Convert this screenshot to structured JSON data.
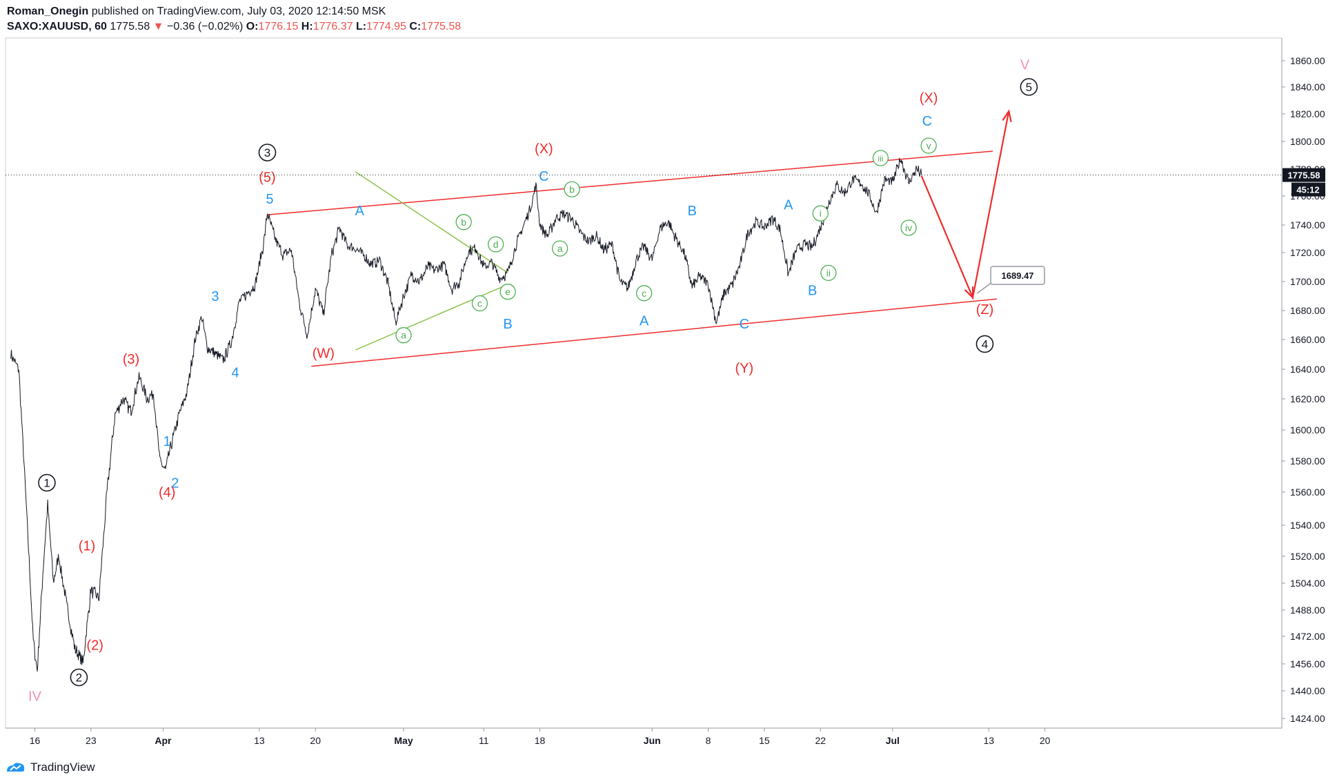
{
  "header": {
    "author": "Roman_Onegin",
    "published_text": "published on TradingView.com, July 03, 2020 12:14:50 MSK",
    "symbol": "SAXO:XAUUSD, 60",
    "last": "1775.58",
    "change": "−0.36 (−0.02%)",
    "o_label": "O:",
    "o_value": "1776.15",
    "h_label": "H:",
    "h_value": "1776.37",
    "l_label": "L:",
    "l_value": "1774.95",
    "c_label": "C:",
    "c_value": "1775.58"
  },
  "footer": {
    "brand": "TradingView"
  },
  "colors": {
    "red": "#ef2b2b",
    "blue": "#2196f3",
    "green": "#4caf50",
    "pink": "#f48fb1",
    "black": "#131722",
    "lightgreen": "#8bc34a"
  },
  "chart_data": {
    "type": "line",
    "title": "",
    "x_ticks": [
      {
        "label": "16",
        "day": 16
      },
      {
        "label": "23",
        "day": 23
      },
      {
        "label": "Apr",
        "day": 32
      },
      {
        "label": "13",
        "day": 44
      },
      {
        "label": "20",
        "day": 51
      },
      {
        "label": "May",
        "day": 62
      },
      {
        "label": "11",
        "day": 72
      },
      {
        "label": "18",
        "day": 79
      },
      {
        "label": "Jun",
        "day": 93
      },
      {
        "label": "8",
        "day": 100
      },
      {
        "label": "15",
        "day": 107
      },
      {
        "label": "22",
        "day": 114
      },
      {
        "label": "Jul",
        "day": 123
      },
      {
        "label": "13",
        "day": 135
      },
      {
        "label": "20",
        "day": 142
      }
    ],
    "y_ticks": [
      "1860.00",
      "1840.00",
      "1820.00",
      "1800.00",
      "1780.00",
      "1760.00",
      "1740.00",
      "1720.00",
      "1700.00",
      "1680.00",
      "1660.00",
      "1640.00",
      "1620.00",
      "1600.00",
      "1580.00",
      "1560.00",
      "1540.00",
      "1520.00",
      "1504.00",
      "1488.00",
      "1472.00",
      "1456.00",
      "1440.00",
      "1424.00"
    ],
    "price_path": [
      [
        13,
        1650
      ],
      [
        14,
        1640
      ],
      [
        15,
        1545
      ],
      [
        15.8,
        1470
      ],
      [
        16.3,
        1452
      ],
      [
        17,
        1510
      ],
      [
        17.6,
        1553
      ],
      [
        18.3,
        1505
      ],
      [
        19,
        1520
      ],
      [
        20,
        1490
      ],
      [
        21,
        1465
      ],
      [
        22,
        1456
      ],
      [
        23,
        1500
      ],
      [
        24,
        1495
      ],
      [
        25,
        1560
      ],
      [
        26,
        1610
      ],
      [
        27,
        1620
      ],
      [
        28,
        1612
      ],
      [
        29,
        1635
      ],
      [
        30,
        1620
      ],
      [
        30.8,
        1624
      ],
      [
        31.6,
        1580
      ],
      [
        32.3,
        1574
      ],
      [
        33,
        1590
      ],
      [
        34,
        1610
      ],
      [
        35,
        1625
      ],
      [
        36,
        1660
      ],
      [
        36.8,
        1676
      ],
      [
        37.5,
        1655
      ],
      [
        38.5,
        1650
      ],
      [
        39.5,
        1646
      ],
      [
        40.5,
        1658
      ],
      [
        41.5,
        1686
      ],
      [
        42.5,
        1692
      ],
      [
        43.5,
        1698
      ],
      [
        44.5,
        1725
      ],
      [
        45,
        1748
      ],
      [
        46,
        1730
      ],
      [
        47,
        1718
      ],
      [
        48,
        1722
      ],
      [
        49,
        1685
      ],
      [
        50,
        1663
      ],
      [
        51,
        1695
      ],
      [
        52,
        1678
      ],
      [
        53,
        1718
      ],
      [
        54,
        1738
      ],
      [
        55,
        1725
      ],
      [
        56,
        1723
      ],
      [
        57,
        1718
      ],
      [
        58,
        1712
      ],
      [
        59,
        1715
      ],
      [
        60,
        1700
      ],
      [
        61,
        1672
      ],
      [
        62,
        1690
      ],
      [
        63,
        1705
      ],
      [
        64,
        1700
      ],
      [
        65,
        1710
      ],
      [
        66,
        1708
      ],
      [
        67,
        1712
      ],
      [
        68,
        1695
      ],
      [
        69,
        1700
      ],
      [
        70,
        1720
      ],
      [
        71,
        1724
      ],
      [
        72,
        1710
      ],
      [
        73,
        1713
      ],
      [
        74,
        1702
      ],
      [
        75,
        1706
      ],
      [
        76,
        1725
      ],
      [
        77,
        1740
      ],
      [
        78,
        1755
      ],
      [
        78.5,
        1768
      ],
      [
        79,
        1740
      ],
      [
        80,
        1732
      ],
      [
        81,
        1745
      ],
      [
        82,
        1748
      ],
      [
        83,
        1744
      ],
      [
        84,
        1735
      ],
      [
        85,
        1728
      ],
      [
        86,
        1732
      ],
      [
        87,
        1722
      ],
      [
        88,
        1726
      ],
      [
        89,
        1700
      ],
      [
        90,
        1695
      ],
      [
        91,
        1715
      ],
      [
        92,
        1725
      ],
      [
        93,
        1715
      ],
      [
        94,
        1738
      ],
      [
        95,
        1742
      ],
      [
        96,
        1730
      ],
      [
        97,
        1720
      ],
      [
        98,
        1696
      ],
      [
        99,
        1704
      ],
      [
        100,
        1698
      ],
      [
        101,
        1672
      ],
      [
        102,
        1692
      ],
      [
        103,
        1698
      ],
      [
        104,
        1712
      ],
      [
        105,
        1735
      ],
      [
        106,
        1742
      ],
      [
        107,
        1738
      ],
      [
        108,
        1745
      ],
      [
        109,
        1736
      ],
      [
        110,
        1705
      ],
      [
        111,
        1722
      ],
      [
        112,
        1726
      ],
      [
        113,
        1724
      ],
      [
        114,
        1738
      ],
      [
        115,
        1755
      ],
      [
        116,
        1768
      ],
      [
        117,
        1762
      ],
      [
        118,
        1772
      ],
      [
        119,
        1770
      ],
      [
        120,
        1762
      ],
      [
        121,
        1748
      ],
      [
        122,
        1772
      ],
      [
        123,
        1770
      ],
      [
        124,
        1788
      ],
      [
        125,
        1770
      ],
      [
        126,
        1780
      ],
      [
        126.6,
        1775.58
      ]
    ],
    "last_price": "1775.58",
    "countdown": "45:12",
    "target_label": "1689.47",
    "projection": [
      [
        126.6,
        1775
      ],
      [
        133,
        1689
      ],
      [
        137.5,
        1822
      ]
    ],
    "wave_labels": [
      {
        "t": "IV",
        "day": 16,
        "p": 1437,
        "c": "pink",
        "s": "plain"
      },
      {
        "t": "1",
        "day": 17.5,
        "p": 1566,
        "c": "black",
        "s": "circle"
      },
      {
        "t": "2",
        "day": 21.5,
        "p": 1448,
        "c": "black",
        "s": "circle"
      },
      {
        "t": "(1)",
        "day": 22.5,
        "p": 1527,
        "c": "red",
        "s": "plain"
      },
      {
        "t": "(2)",
        "day": 23.5,
        "p": 1467,
        "c": "red",
        "s": "plain"
      },
      {
        "t": "(3)",
        "day": 28,
        "p": 1647,
        "c": "red",
        "s": "plain"
      },
      {
        "t": "1",
        "day": 32.5,
        "p": 1593,
        "c": "blue",
        "s": "plain"
      },
      {
        "t": "2",
        "day": 33.5,
        "p": 1566,
        "c": "blue",
        "s": "plain"
      },
      {
        "t": "(4)",
        "day": 32.5,
        "p": 1560,
        "c": "red",
        "s": "plain"
      },
      {
        "t": "3",
        "day": 38.5,
        "p": 1690,
        "c": "blue",
        "s": "plain"
      },
      {
        "t": "4",
        "day": 41,
        "p": 1638,
        "c": "blue",
        "s": "plain"
      },
      {
        "t": "3",
        "day": 45,
        "p": 1792,
        "c": "black",
        "s": "circle"
      },
      {
        "t": "(5)",
        "day": 45,
        "p": 1774,
        "c": "red",
        "s": "plain"
      },
      {
        "t": "5",
        "day": 45.3,
        "p": 1758,
        "c": "blue",
        "s": "plain"
      },
      {
        "t": "(W)",
        "day": 52,
        "p": 1651,
        "c": "red",
        "s": "plain"
      },
      {
        "t": "A",
        "day": 56.5,
        "p": 1750,
        "c": "blue",
        "s": "plain"
      },
      {
        "t": "a",
        "day": 62,
        "p": 1663,
        "c": "green",
        "s": "circle"
      },
      {
        "t": "b",
        "day": 69.5,
        "p": 1742,
        "c": "green",
        "s": "circle"
      },
      {
        "t": "c",
        "day": 71.5,
        "p": 1685,
        "c": "green",
        "s": "circle"
      },
      {
        "t": "d",
        "day": 73.5,
        "p": 1726,
        "c": "green",
        "s": "circle"
      },
      {
        "t": "e",
        "day": 75,
        "p": 1693,
        "c": "green",
        "s": "circle"
      },
      {
        "t": "B",
        "day": 75,
        "p": 1671,
        "c": "blue",
        "s": "plain"
      },
      {
        "t": "(X)",
        "day": 79.5,
        "p": 1795,
        "c": "red",
        "s": "plain"
      },
      {
        "t": "C",
        "day": 79.5,
        "p": 1775,
        "c": "blue",
        "s": "plain"
      },
      {
        "t": "b",
        "day": 83,
        "p": 1765,
        "c": "green",
        "s": "circle"
      },
      {
        "t": "a",
        "day": 81.5,
        "p": 1723,
        "c": "green",
        "s": "circle"
      },
      {
        "t": "c",
        "day": 92,
        "p": 1692,
        "c": "green",
        "s": "circle"
      },
      {
        "t": "A",
        "day": 92,
        "p": 1673,
        "c": "blue",
        "s": "plain"
      },
      {
        "t": "B",
        "day": 98,
        "p": 1750,
        "c": "blue",
        "s": "plain"
      },
      {
        "t": "C",
        "day": 104.5,
        "p": 1671,
        "c": "blue",
        "s": "plain"
      },
      {
        "t": "(Y)",
        "day": 104.5,
        "p": 1641,
        "c": "red",
        "s": "plain"
      },
      {
        "t": "A",
        "day": 110,
        "p": 1754,
        "c": "blue",
        "s": "plain"
      },
      {
        "t": "i",
        "day": 114,
        "p": 1748,
        "c": "green",
        "s": "circle"
      },
      {
        "t": "ii",
        "day": 115,
        "p": 1706,
        "c": "green",
        "s": "circle"
      },
      {
        "t": "B",
        "day": 113,
        "p": 1694,
        "c": "blue",
        "s": "plain"
      },
      {
        "t": "iii",
        "day": 121.5,
        "p": 1788,
        "c": "green",
        "s": "circle"
      },
      {
        "t": "iv",
        "day": 125,
        "p": 1738,
        "c": "green",
        "s": "circle"
      },
      {
        "t": "v",
        "day": 127.5,
        "p": 1797,
        "c": "green",
        "s": "circle"
      },
      {
        "t": "C",
        "day": 127.3,
        "p": 1815,
        "c": "blue",
        "s": "plain"
      },
      {
        "t": "(X)",
        "day": 127.5,
        "p": 1832,
        "c": "red",
        "s": "plain"
      },
      {
        "t": "(Z)",
        "day": 134.5,
        "p": 1681,
        "c": "red",
        "s": "plain"
      },
      {
        "t": "4",
        "day": 134.5,
        "p": 1657,
        "c": "black",
        "s": "circle"
      },
      {
        "t": "5",
        "day": 140,
        "p": 1840,
        "c": "black",
        "s": "circle"
      },
      {
        "t": "V",
        "day": 139.5,
        "p": 1857,
        "c": "pink",
        "s": "plain"
      }
    ],
    "trendlines": [
      {
        "c": "red",
        "from": [
          45,
          1747
        ],
        "to": [
          135.5,
          1793
        ]
      },
      {
        "c": "red",
        "from": [
          50.5,
          1642
        ],
        "to": [
          136,
          1688
        ]
      },
      {
        "c": "lightgreen",
        "from": [
          56,
          1778
        ],
        "to": [
          75,
          1706
        ]
      },
      {
        "c": "lightgreen",
        "from": [
          56,
          1653
        ],
        "to": [
          75,
          1698
        ]
      }
    ]
  }
}
